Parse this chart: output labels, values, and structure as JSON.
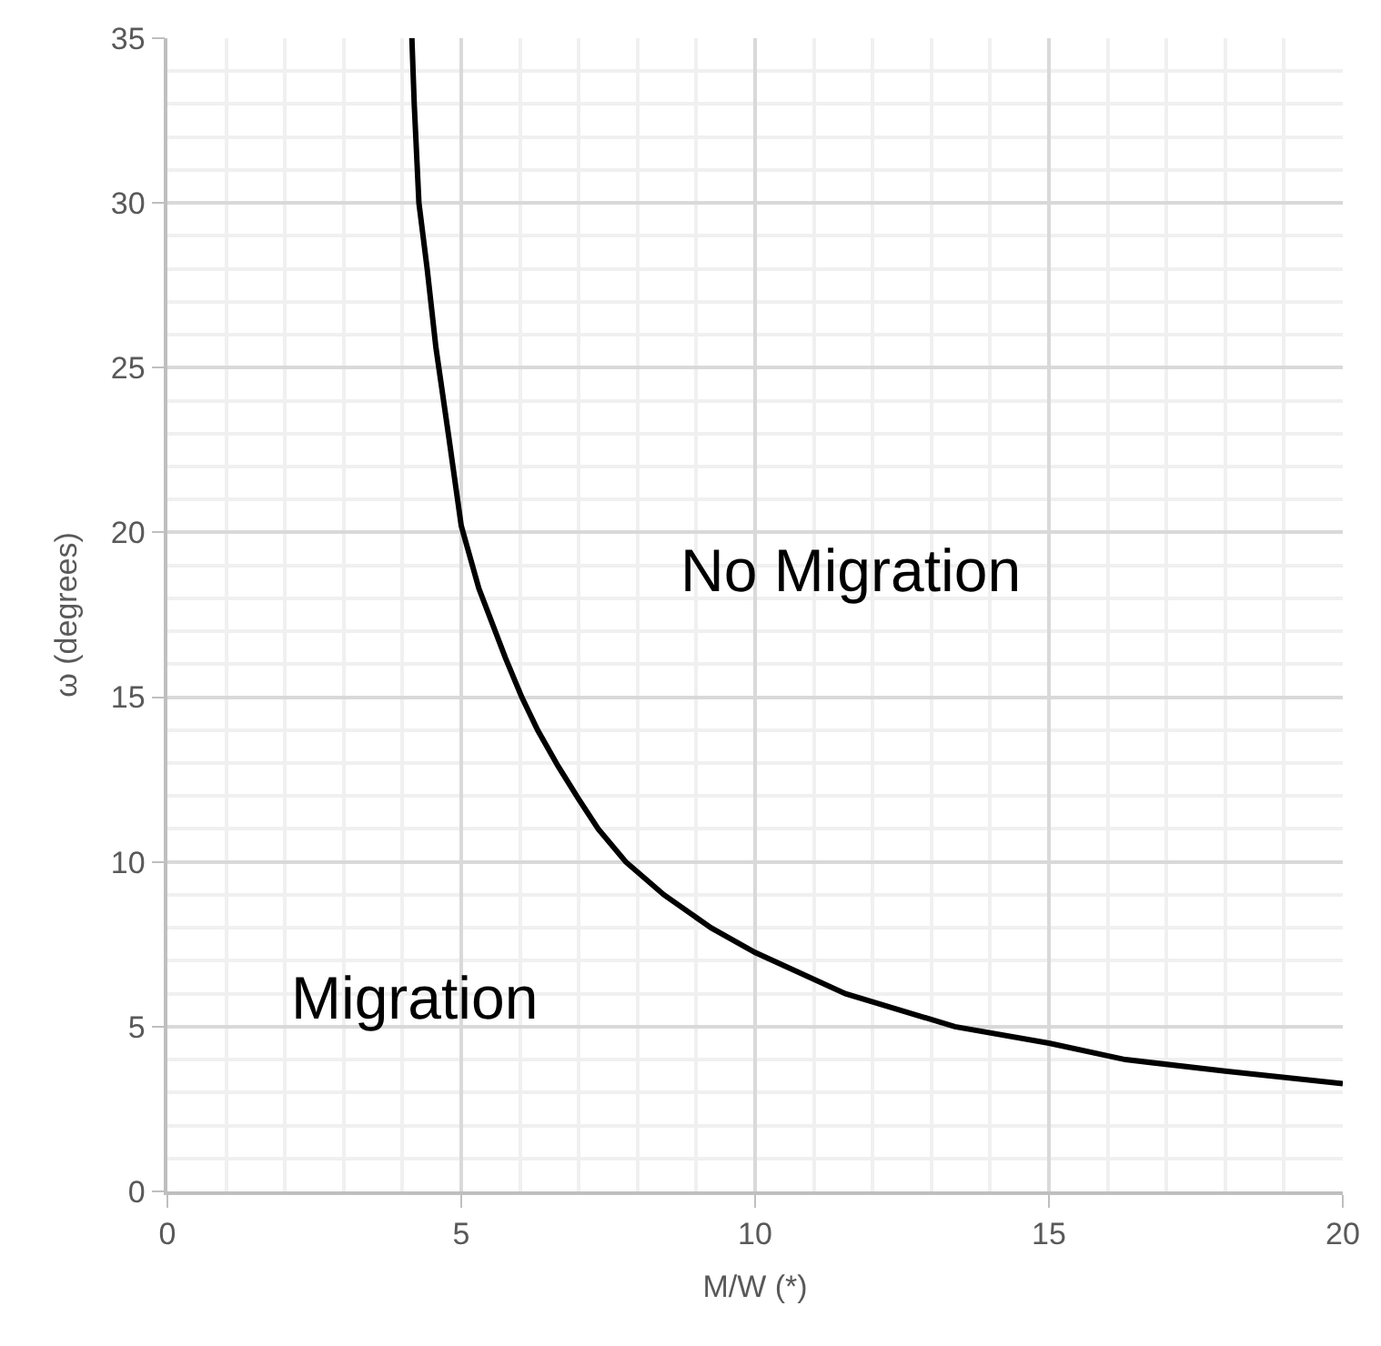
{
  "chart_data": {
    "type": "line",
    "xlabel": "M/W (*)",
    "ylabel": "ω (degrees)",
    "x": [
      4.16,
      4.2,
      4.28,
      4.42,
      4.57,
      4.78,
      5.0,
      5.3,
      5.75,
      6.03,
      6.3,
      6.65,
      7.0,
      7.33,
      7.8,
      8.45,
      9.25,
      10.0,
      11.54,
      13.4,
      15.0,
      16.3,
      18.0,
      20.0
    ],
    "series": [
      {
        "color": "#000000",
        "values": [
          35,
          33,
          30,
          28,
          25.6,
          23,
          20.2,
          18.3,
          16.2,
          15,
          14,
          12.9,
          11.9,
          11,
          10,
          9,
          8,
          7.25,
          6,
          5,
          4.5,
          4,
          3.65,
          3.27
        ]
      }
    ],
    "xlim": [
      0,
      20
    ],
    "ylim": [
      0,
      35
    ],
    "xticks": [
      0,
      5,
      10,
      15,
      20
    ],
    "yticks": [
      0,
      5,
      10,
      15,
      20,
      25,
      30,
      35
    ],
    "grid": true,
    "marker": "none",
    "line_style": "solid",
    "annotations": [
      "No Migration",
      "Migration"
    ]
  }
}
